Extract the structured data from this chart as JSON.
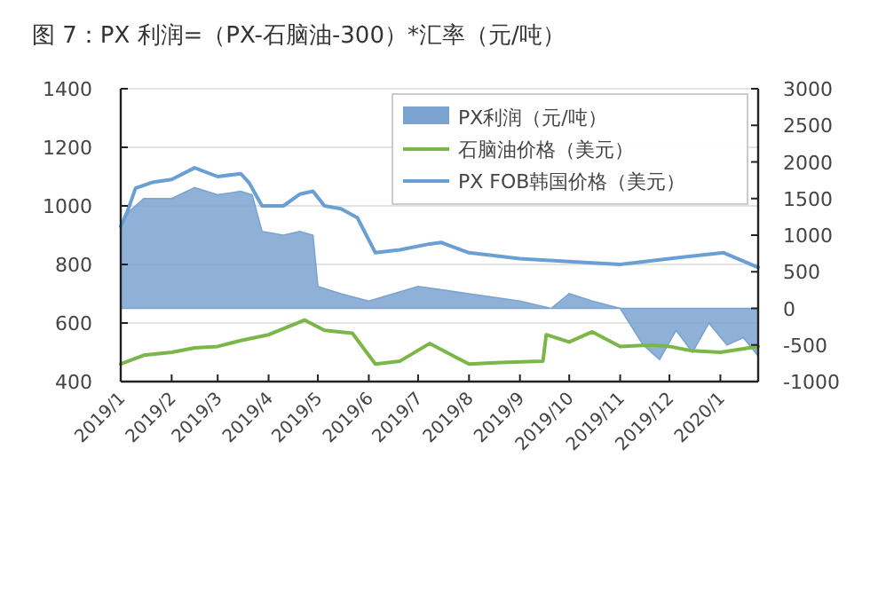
{
  "chart_data": {
    "type": "line",
    "title": "图 7：PX 利润=（PX-石脑油-300）*汇率（元/吨）",
    "xlim": [
      "2019-01-01",
      "2020-01-24"
    ],
    "xticks": [
      {
        "value": "2019-01",
        "label": "2019/1"
      },
      {
        "value": "2019-02",
        "label": "2019/2"
      },
      {
        "value": "2019-03",
        "label": "2019/3"
      },
      {
        "value": "2019-04",
        "label": "2019/4"
      },
      {
        "value": "2019-05",
        "label": "2019/5"
      },
      {
        "value": "2019-06",
        "label": "2019/6"
      },
      {
        "value": "2019-07",
        "label": "2019/7"
      },
      {
        "value": "2019-08",
        "label": "2019/8"
      },
      {
        "value": "2019-09",
        "label": "2019/9"
      },
      {
        "value": "2019-10",
        "label": "2019/10"
      },
      {
        "value": "2019-11",
        "label": "2019/11"
      },
      {
        "value": "2019-12",
        "label": "2019/12"
      },
      {
        "value": "2020-01",
        "label": "2020/1"
      }
    ],
    "ylim": [
      400,
      1400
    ],
    "yticks": [
      400,
      600,
      800,
      1000,
      1200,
      1400
    ],
    "y2lim": [
      -1000,
      3000
    ],
    "y2ticks": [
      -1000,
      -500,
      0,
      500,
      1000,
      1500,
      2000,
      2500,
      3000
    ],
    "grid": "y",
    "legend": "top right",
    "series": [
      {
        "name": "PX利润（元/吨）",
        "type": "area",
        "axis": "y2",
        "color": "#7ba3d0",
        "x": [
          "2019-01-01",
          "2019-01-05",
          "2019-01-15",
          "2019-02-01",
          "2019-02-15",
          "2019-03-01",
          "2019-03-15",
          "2019-03-22",
          "2019-03-28",
          "2019-04-10",
          "2019-04-20",
          "2019-04-28",
          "2019-05-01",
          "2019-05-15",
          "2019-06-01",
          "2019-07-01",
          "2019-08-01",
          "2019-09-01",
          "2019-09-20",
          "2019-10-01",
          "2019-10-15",
          "2019-11-01",
          "2019-11-15",
          "2019-11-25",
          "2019-12-05",
          "2019-12-15",
          "2019-12-25",
          "2020-01-05",
          "2020-01-15",
          "2020-01-24"
        ],
        "values": [
          1100,
          1300,
          1500,
          1500,
          1650,
          1550,
          1600,
          1550,
          1050,
          1000,
          1050,
          1000,
          300,
          200,
          100,
          300,
          200,
          100,
          0,
          200,
          100,
          0,
          -500,
          -700,
          -300,
          -600,
          -200,
          -500,
          -400,
          -650
        ]
      },
      {
        "name": "石脑油价格（美元）",
        "color": "#7ab648",
        "x": [
          "2019-01-01",
          "2019-01-15",
          "2019-02-01",
          "2019-02-15",
          "2019-03-01",
          "2019-03-15",
          "2019-04-01",
          "2019-04-23",
          "2019-05-05",
          "2019-05-22",
          "2019-06-05",
          "2019-06-20",
          "2019-07-08",
          "2019-08-01",
          "2019-08-20",
          "2019-09-15",
          "2019-09-17",
          "2019-10-01",
          "2019-10-15",
          "2019-11-01",
          "2019-11-20",
          "2019-12-01",
          "2019-12-15",
          "2020-01-01",
          "2020-01-24"
        ],
        "values": [
          460,
          490,
          500,
          515,
          520,
          540,
          560,
          610,
          575,
          565,
          460,
          470,
          530,
          460,
          465,
          470,
          560,
          535,
          570,
          520,
          525,
          520,
          505,
          500,
          520
        ]
      },
      {
        "name": "PX FOB韩国价格（美元）",
        "color": "#6a9fd4",
        "x": [
          "2019-01-01",
          "2019-01-05",
          "2019-01-10",
          "2019-01-20",
          "2019-02-01",
          "2019-02-15",
          "2019-03-01",
          "2019-03-15",
          "2019-03-20",
          "2019-03-28",
          "2019-04-10",
          "2019-04-20",
          "2019-04-28",
          "2019-05-05",
          "2019-05-15",
          "2019-05-25",
          "2019-06-05",
          "2019-06-20",
          "2019-07-08",
          "2019-07-15",
          "2019-08-01",
          "2019-09-01",
          "2019-10-01",
          "2019-11-01",
          "2019-12-01",
          "2020-01-03",
          "2020-01-24"
        ],
        "values": [
          930,
          980,
          1060,
          1080,
          1090,
          1130,
          1100,
          1110,
          1080,
          1000,
          1000,
          1040,
          1050,
          1000,
          990,
          960,
          840,
          850,
          870,
          875,
          840,
          820,
          810,
          800,
          820,
          840,
          790
        ]
      }
    ]
  }
}
